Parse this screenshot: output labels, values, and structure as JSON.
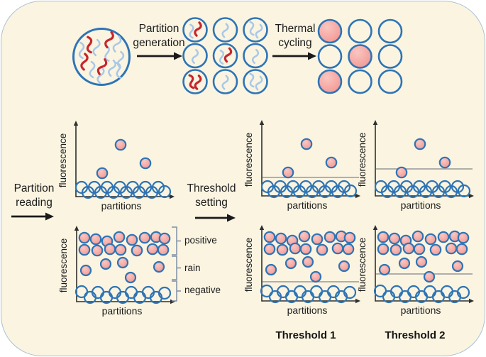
{
  "labels": {
    "partition_generation": "Partition generation",
    "thermal_cycling": "Thermal cycling",
    "partition_reading": "Partition reading",
    "threshold_setting": "Threshold setting",
    "threshold_1": "Threshold 1",
    "threshold_2": "Threshold 2"
  },
  "regions": {
    "positive": "positive",
    "rain": "rain",
    "negative": "negative"
  },
  "colors": {
    "background": "#faf4e1",
    "border": "#a9c3d4",
    "droplet_stroke": "#2e74b5",
    "positive_fill": "#f2928d",
    "positive_fill_light": "#fac6c1",
    "target_strand": "#c5262c",
    "background_strand": "#a8c8e8",
    "threshold_line": "#979797",
    "bracket": "#7c8fa6",
    "arrow": "#1a1a1a",
    "text": "#1c1c1c",
    "axis": "#2f2f2f"
  },
  "sample_mix": {
    "red_strands": 4,
    "blue_strands": 9
  },
  "partition_grid": {
    "rows": [
      [
        "blue+red",
        "blue",
        "blue2"
      ],
      [
        "blue",
        "blue+red",
        "blue"
      ],
      [
        "red2",
        "blue",
        "blue2"
      ]
    ],
    "target_positions": [
      [
        0,
        0
      ],
      [
        1,
        1
      ],
      [
        2,
        0
      ]
    ]
  },
  "thermal_grid": {
    "rows": [
      [
        "positive",
        "negative",
        "negative"
      ],
      [
        "negative",
        "positive",
        "negative"
      ],
      [
        "positive",
        "negative",
        "negative"
      ]
    ]
  },
  "chart_data": {
    "type": "scatter",
    "xlabel": "partitions",
    "ylabel": "fluorescence",
    "x_range": [
      0,
      132
    ],
    "y_range": [
      0,
      106
    ],
    "point_sets": {
      "after_reading": {
        "positive": [
          {
            "x": 37,
            "y": 33
          },
          {
            "x": 63,
            "y": 73
          },
          {
            "x": 98,
            "y": 47
          }
        ],
        "negative": [
          {
            "x": 8,
            "y": 13
          },
          {
            "x": 17,
            "y": 6
          },
          {
            "x": 26,
            "y": 13
          },
          {
            "x": 35,
            "y": 6
          },
          {
            "x": 44,
            "y": 13
          },
          {
            "x": 53,
            "y": 6
          },
          {
            "x": 62,
            "y": 13
          },
          {
            "x": 71,
            "y": 6
          },
          {
            "x": 80,
            "y": 13
          },
          {
            "x": 89,
            "y": 6
          },
          {
            "x": 98,
            "y": 13
          },
          {
            "x": 107,
            "y": 6
          },
          {
            "x": 116,
            "y": 13
          },
          {
            "x": 125,
            "y": 7
          }
        ]
      },
      "high_occupancy": {
        "positive": [
          {
            "x": 11,
            "y": 90
          },
          {
            "x": 27,
            "y": 88
          },
          {
            "x": 43,
            "y": 85
          },
          {
            "x": 60,
            "y": 91
          },
          {
            "x": 78,
            "y": 87
          },
          {
            "x": 96,
            "y": 90
          },
          {
            "x": 112,
            "y": 91
          },
          {
            "x": 124,
            "y": 89
          },
          {
            "x": 11,
            "y": 73
          },
          {
            "x": 29,
            "y": 72
          },
          {
            "x": 47,
            "y": 74
          },
          {
            "x": 62,
            "y": 73
          },
          {
            "x": 85,
            "y": 72
          },
          {
            "x": 107,
            "y": 74
          },
          {
            "x": 122,
            "y": 73
          }
        ],
        "rain": [
          {
            "x": 13,
            "y": 44
          },
          {
            "x": 41,
            "y": 53
          },
          {
            "x": 65,
            "y": 55
          },
          {
            "x": 76,
            "y": 34
          },
          {
            "x": 116,
            "y": 49
          }
        ],
        "negative": [
          {
            "x": 7,
            "y": 14
          },
          {
            "x": 19,
            "y": 6
          },
          {
            "x": 30,
            "y": 13
          },
          {
            "x": 42,
            "y": 6
          },
          {
            "x": 54,
            "y": 13
          },
          {
            "x": 65,
            "y": 6
          },
          {
            "x": 77,
            "y": 13
          },
          {
            "x": 89,
            "y": 6
          },
          {
            "x": 101,
            "y": 13
          },
          {
            "x": 112,
            "y": 6
          },
          {
            "x": 124,
            "y": 12
          }
        ]
      }
    },
    "plots": [
      {
        "id": "reading-upper",
        "point_set": "after_reading",
        "threshold": null
      },
      {
        "id": "reading-lower",
        "point_set": "high_occupancy",
        "threshold": null,
        "region_labels": [
          "positive",
          "rain",
          "negative"
        ]
      },
      {
        "id": "threshold1-upper",
        "point_set": "after_reading",
        "threshold": 26
      },
      {
        "id": "threshold1-lower",
        "point_set": "high_occupancy",
        "threshold": 27
      },
      {
        "id": "threshold2-upper",
        "point_set": "after_reading",
        "threshold": 38
      },
      {
        "id": "threshold2-lower",
        "point_set": "high_occupancy",
        "threshold": 38
      }
    ]
  }
}
